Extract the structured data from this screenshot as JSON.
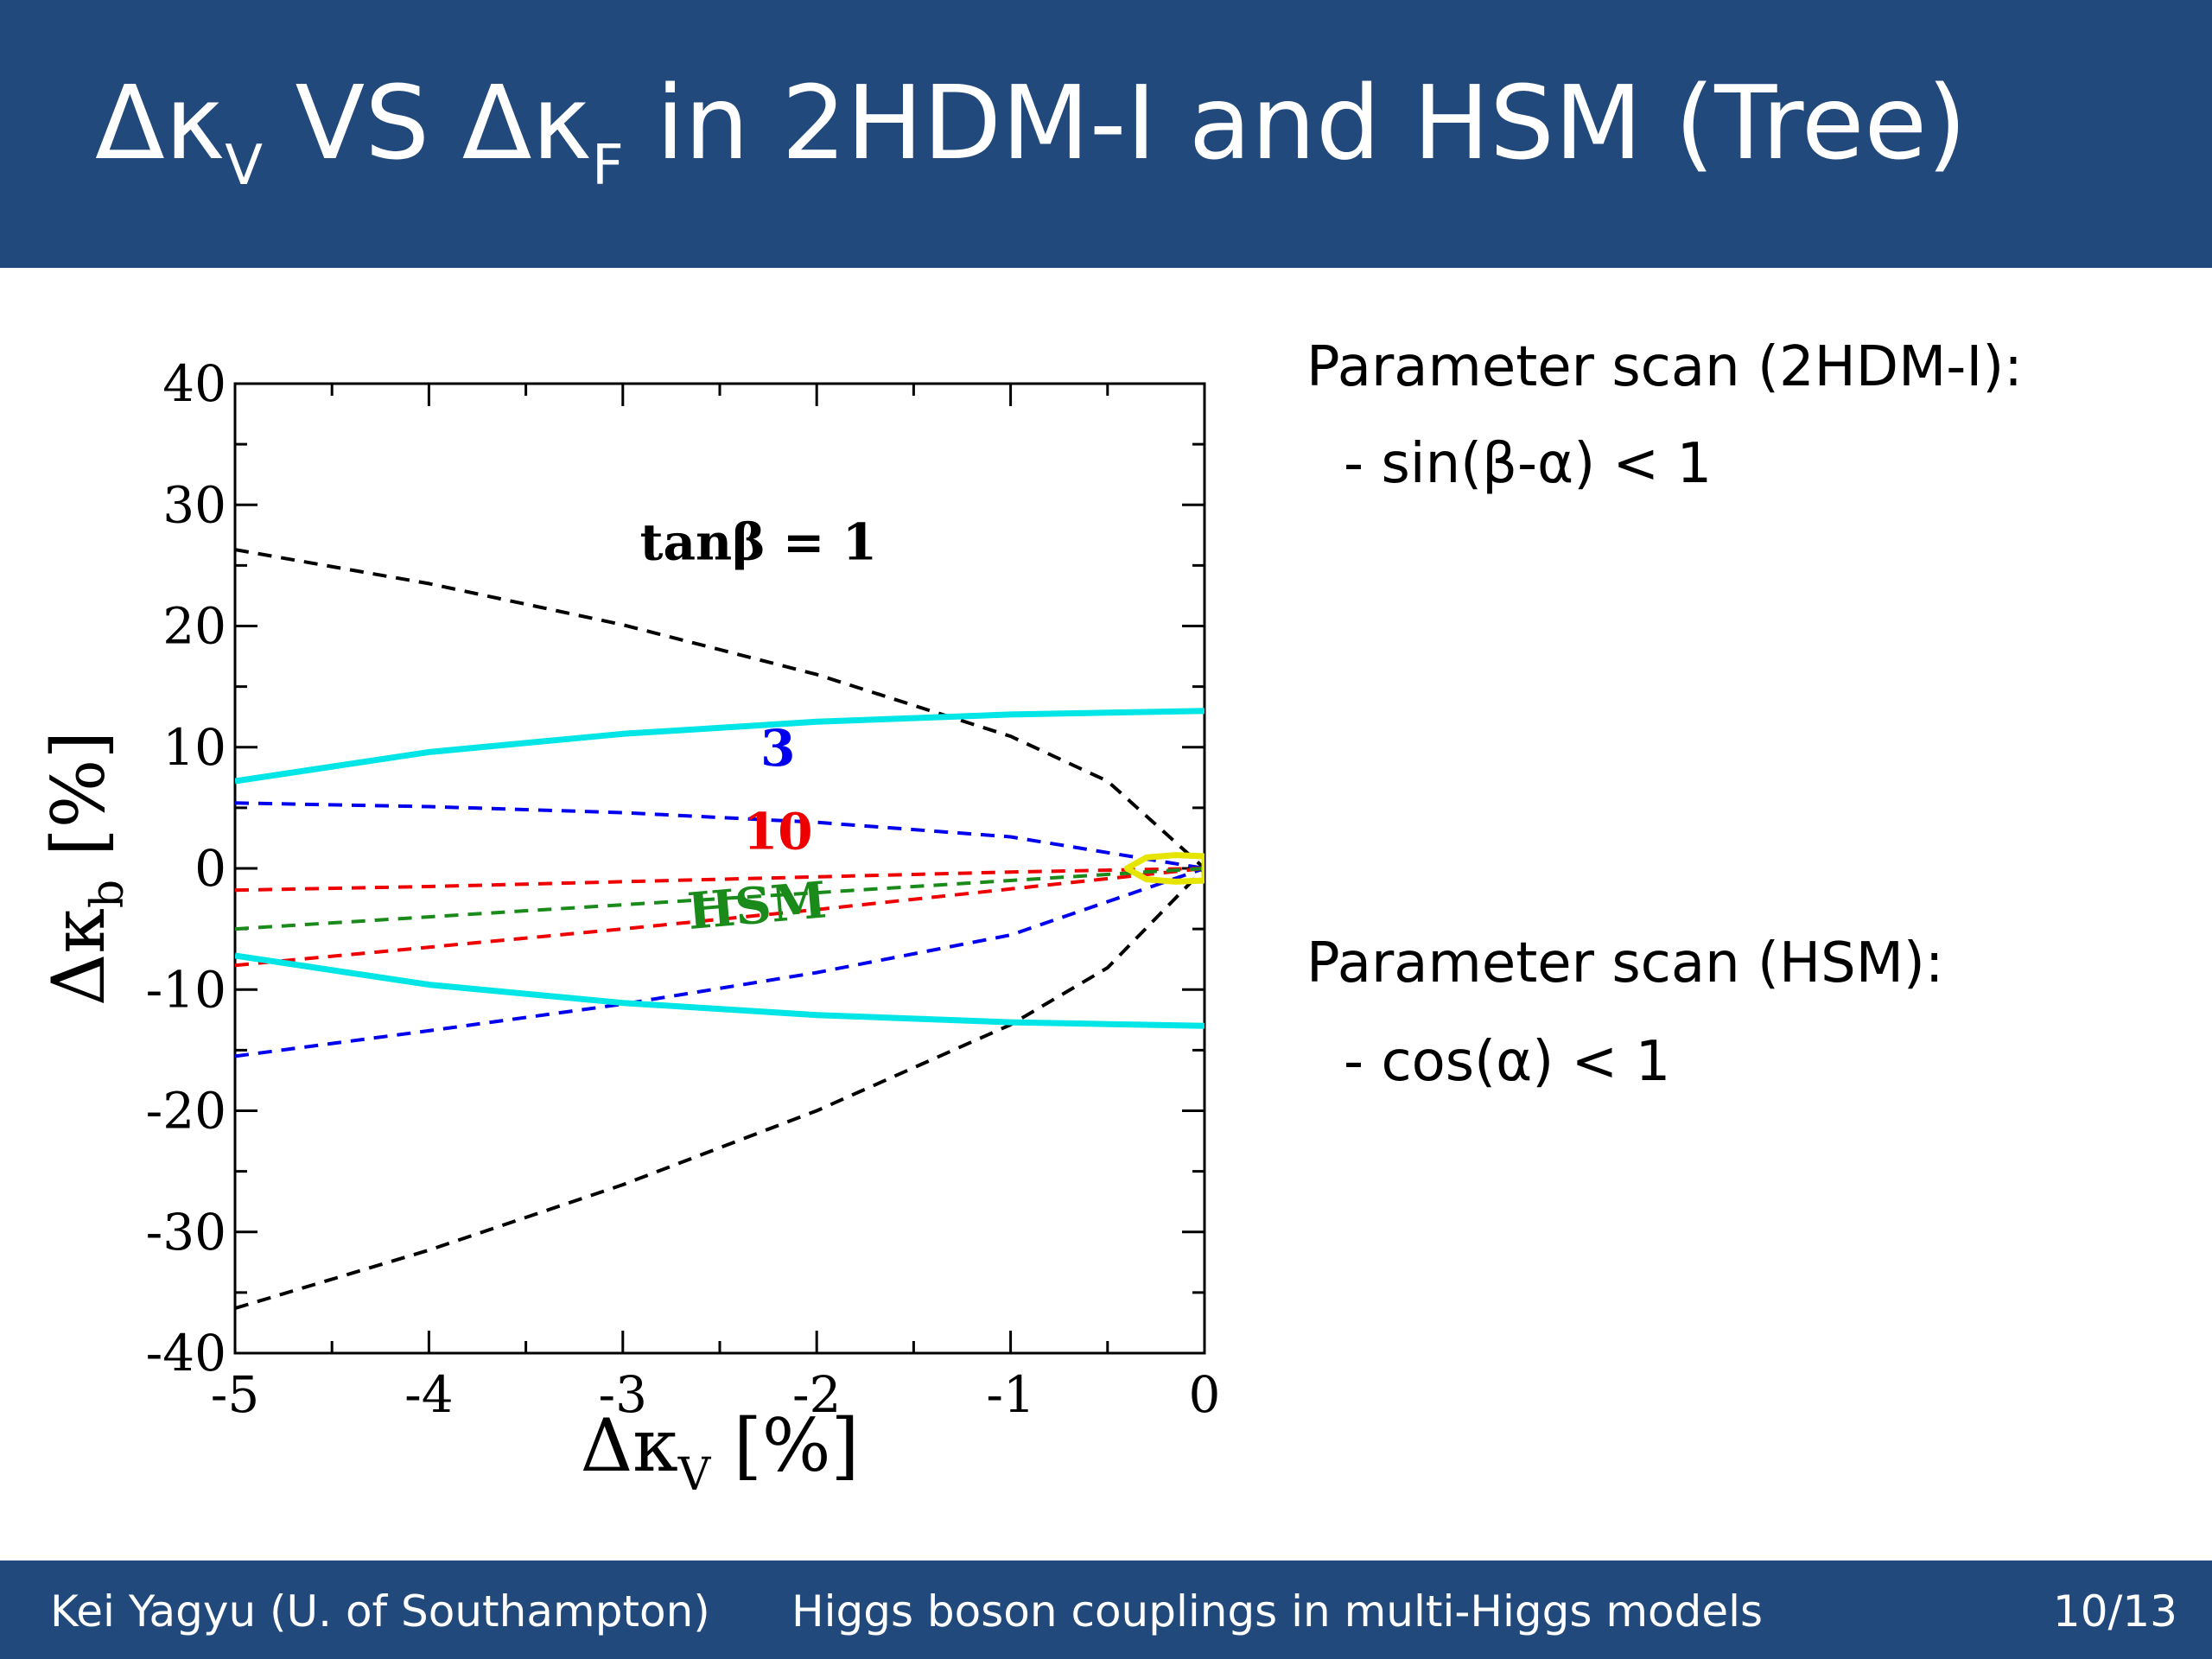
{
  "slide": {
    "title_parts": {
      "delta_kappa_v": "Δκ",
      "v_sub": "V",
      "vs": " VS ",
      "delta_kappa_f": "Δκ",
      "f_sub": "F",
      "rest": " in 2HDM-I and HSM (Tree)"
    },
    "notes": {
      "scan1_heading": "Parameter scan (2HDM-I):",
      "scan1_condition": "- sin(β-α) < 1",
      "scan2_heading": "Parameter scan (HSM):",
      "scan2_condition": "- cos(α) < 1"
    },
    "footer": {
      "author": "Kei Yagyu (U. of Southampton)",
      "talk_title": "Higgs boson couplings in multi-Higgs models",
      "page": "10/13"
    },
    "colors": {
      "header_bg": "#22497b",
      "footer_bg": "#22497b",
      "text_on_header": "#ffffff"
    }
  },
  "chart_data": {
    "type": "line",
    "xlabel_main": "Δκ",
    "xlabel_sub": "V",
    "xlabel_unit": " [%]",
    "ylabel_main": "Δκ",
    "ylabel_sub": "b",
    "ylabel_unit": " [%]",
    "xlim": [
      -5,
      0
    ],
    "ylim": [
      -40,
      40
    ],
    "x_ticks": [
      -5,
      -4,
      -3,
      -2,
      -1,
      0
    ],
    "y_ticks": [
      -40,
      -30,
      -20,
      -10,
      0,
      10,
      20,
      30,
      40
    ],
    "x_tick_labels": [
      "-5",
      "-4",
      "-3",
      "-2",
      "-1",
      "0"
    ],
    "y_tick_labels": [
      "-40",
      "-30",
      "-20",
      "-10",
      "0",
      "10",
      "20",
      "30",
      "40"
    ],
    "grid": false,
    "series": [
      {
        "name": "tanβ = 1",
        "color": "#000000",
        "style": "dashed",
        "x": [
          -5,
          -4,
          -3,
          -2,
          -1,
          -0.5,
          0
        ],
        "y_upper": [
          26.3,
          23.5,
          20.1,
          16.0,
          10.9,
          7.2,
          0
        ],
        "y_lower": [
          -36.3,
          -31.5,
          -26.1,
          -20.0,
          -12.9,
          -8.2,
          0
        ]
      },
      {
        "name": "3",
        "color": "#0000ee",
        "style": "dashed",
        "x": [
          -5,
          -4,
          -3,
          -2,
          -1,
          0
        ],
        "y_upper": [
          5.4,
          5.1,
          4.6,
          3.8,
          2.6,
          0
        ],
        "y_lower": [
          -15.5,
          -13.4,
          -11.2,
          -8.6,
          -5.5,
          0
        ]
      },
      {
        "name": "10",
        "color": "#ee0000",
        "style": "dashed",
        "x": [
          -5,
          -4,
          -3,
          -2,
          -1,
          0
        ],
        "y_upper": [
          -1.8,
          -1.5,
          -1.1,
          -0.7,
          -0.3,
          0
        ],
        "y_lower": [
          -8.0,
          -6.5,
          -5.0,
          -3.4,
          -1.7,
          0
        ]
      },
      {
        "name": "HSM",
        "color": "#1a8a1a",
        "style": "dashed",
        "x": [
          -5,
          -4,
          -3,
          -2,
          -1,
          0
        ],
        "y": [
          -5.0,
          -4.0,
          -3.0,
          -2.0,
          -1.0,
          0
        ]
      },
      {
        "name": "",
        "color": "#00e5e5",
        "style": "solid",
        "x": [
          -5,
          -4,
          -3,
          -2,
          -1,
          0
        ],
        "y_upper": [
          7.2,
          9.6,
          11.1,
          12.1,
          12.7,
          13.0
        ],
        "y_lower": [
          -7.2,
          -9.6,
          -11.1,
          -12.1,
          -12.7,
          -13.0
        ]
      },
      {
        "name": "",
        "color": "#e5e500",
        "style": "solid",
        "x": [
          -0.4,
          -0.3,
          -0.15,
          0
        ],
        "y_upper": [
          0.0,
          0.9,
          1.1,
          1.0
        ],
        "y_lower": [
          0.0,
          -0.9,
          -1.1,
          -1.0
        ]
      }
    ],
    "annotations": [
      {
        "text": "tanβ = 1",
        "x": -2.3,
        "y": 25.5,
        "color": "#000000"
      },
      {
        "text": "3",
        "x": -2.2,
        "y": 8.5,
        "color": "#0000ee"
      },
      {
        "text": "10",
        "x": -2.2,
        "y": 1.6,
        "color": "#ee0000"
      },
      {
        "text": "HSM",
        "x": -2.3,
        "y": -4.5,
        "color": "#1a8a1a"
      }
    ]
  }
}
